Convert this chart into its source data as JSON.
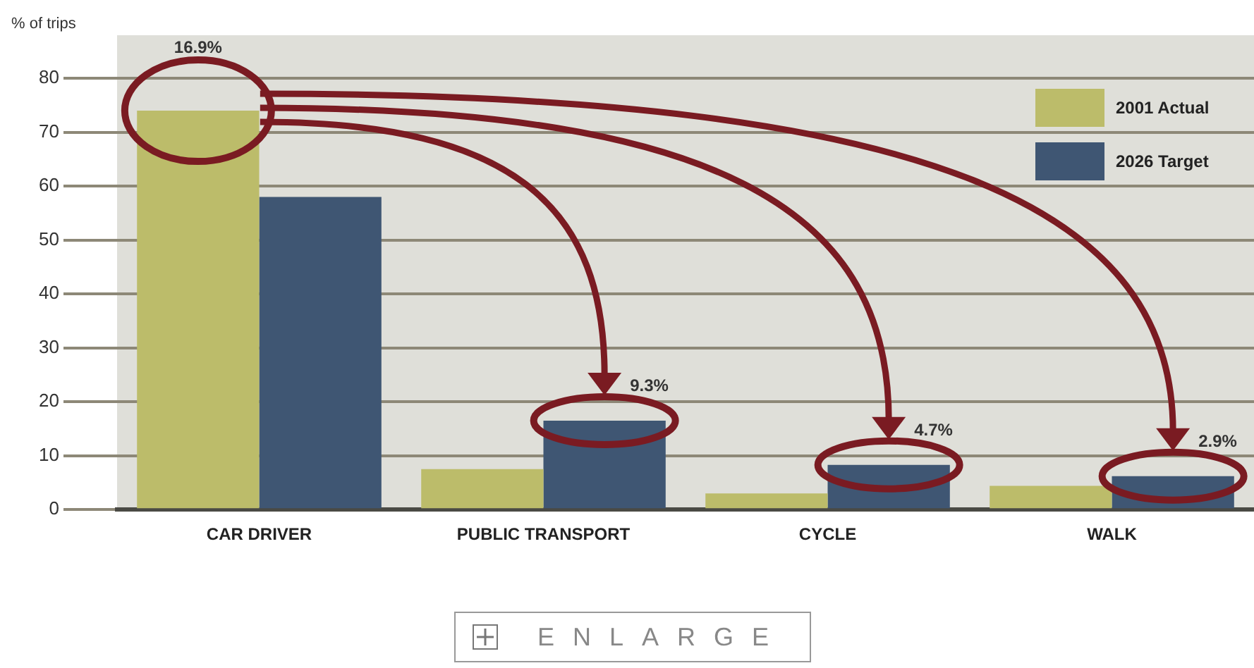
{
  "chart_data": {
    "type": "bar",
    "ylabel": "% of trips",
    "categories": [
      "CAR DRIVER",
      "PUBLIC TRANSPORT",
      "CYCLE",
      "WALK"
    ],
    "series": [
      {
        "name": "2001 Actual",
        "color": "#bcbc6a",
        "values": [
          74,
          7.5,
          3,
          4.4
        ]
      },
      {
        "name": "2026 Target",
        "color": "#3f5673",
        "values": [
          58,
          16.5,
          8.3,
          6.2
        ]
      }
    ],
    "ylim": [
      0,
      88
    ],
    "yticks": [
      0,
      10,
      20,
      30,
      40,
      50,
      60,
      70,
      80
    ],
    "grid": "y",
    "legend": "top right",
    "annotations": [
      "16.9%",
      "9.3%",
      "4.7%",
      "2.9%",
      "ENLARGE"
    ]
  }
}
